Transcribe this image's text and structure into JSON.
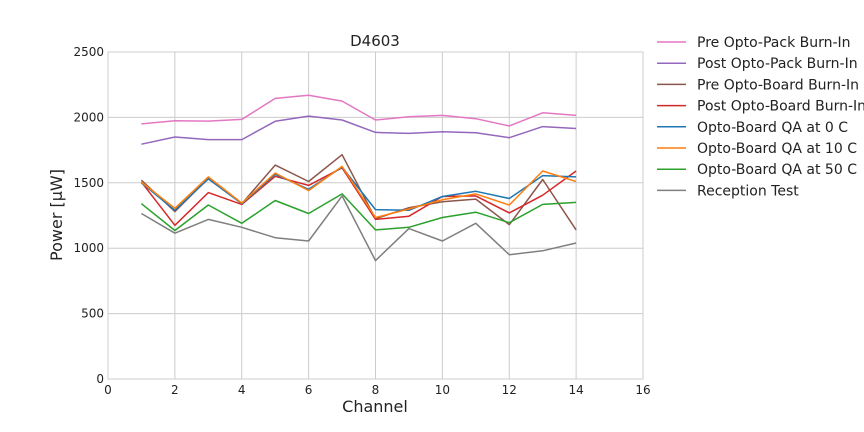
{
  "chart_data": {
    "type": "line",
    "title": "D4603",
    "xlabel": "Channel",
    "ylabel": "Power [μW]",
    "xlim": [
      0,
      16
    ],
    "ylim": [
      0,
      2500
    ],
    "xticks": [
      "0",
      "2",
      "4",
      "6",
      "8",
      "10",
      "12",
      "14",
      "16"
    ],
    "yticks": [
      "0",
      "500",
      "1000",
      "1500",
      "2000",
      "2500"
    ],
    "grid": true,
    "legend_position": "outside-right",
    "x": [
      1,
      2,
      3,
      4,
      5,
      6,
      7,
      8,
      9,
      10,
      11,
      12,
      13,
      14
    ],
    "series": [
      {
        "name": "Pre Opto-Pack Burn-In",
        "color": "#e377c2",
        "values": [
          1950,
          1975,
          1972,
          1985,
          2145,
          2170,
          2125,
          1980,
          2005,
          2015,
          1990,
          1935,
          2035,
          2015
        ]
      },
      {
        "name": "Post Opto-Pack Burn-In",
        "color": "#9467bd",
        "values": [
          1795,
          1850,
          1830,
          1830,
          1970,
          2010,
          1980,
          1885,
          1878,
          1890,
          1882,
          1845,
          1930,
          1915
        ]
      },
      {
        "name": "Pre Opto-Board Burn-In",
        "color": "#8c564b",
        "values": [
          1520,
          1280,
          1535,
          1340,
          1635,
          1510,
          1715,
          1225,
          1310,
          1355,
          1375,
          1180,
          1525,
          1140
        ]
      },
      {
        "name": "Post Opto-Board Burn-In",
        "color": "#d62728",
        "values": [
          1505,
          1175,
          1425,
          1335,
          1550,
          1480,
          1615,
          1220,
          1245,
          1395,
          1400,
          1270,
          1405,
          1590
        ]
      },
      {
        "name": "Opto-Board QA at 0 C",
        "color": "#1f77b4",
        "values": [
          1500,
          1290,
          1530,
          1340,
          1565,
          1450,
          1620,
          1295,
          1290,
          1395,
          1435,
          1380,
          1555,
          1545
        ]
      },
      {
        "name": "Opto-Board QA at 10 C",
        "color": "#ff7f0e",
        "values": [
          1505,
          1305,
          1545,
          1345,
          1575,
          1440,
          1625,
          1235,
          1300,
          1370,
          1415,
          1330,
          1590,
          1510
        ]
      },
      {
        "name": "Opto-Board QA at 50 C",
        "color": "#2ca02c",
        "values": [
          1340,
          1135,
          1330,
          1190,
          1365,
          1265,
          1415,
          1140,
          1160,
          1235,
          1275,
          1195,
          1335,
          1350
        ]
      },
      {
        "name": "Reception Test",
        "color": "#7f7f7f",
        "values": [
          1265,
          1115,
          1220,
          1160,
          1080,
          1055,
          1400,
          905,
          1150,
          1055,
          1190,
          950,
          980,
          1040
        ]
      }
    ]
  }
}
